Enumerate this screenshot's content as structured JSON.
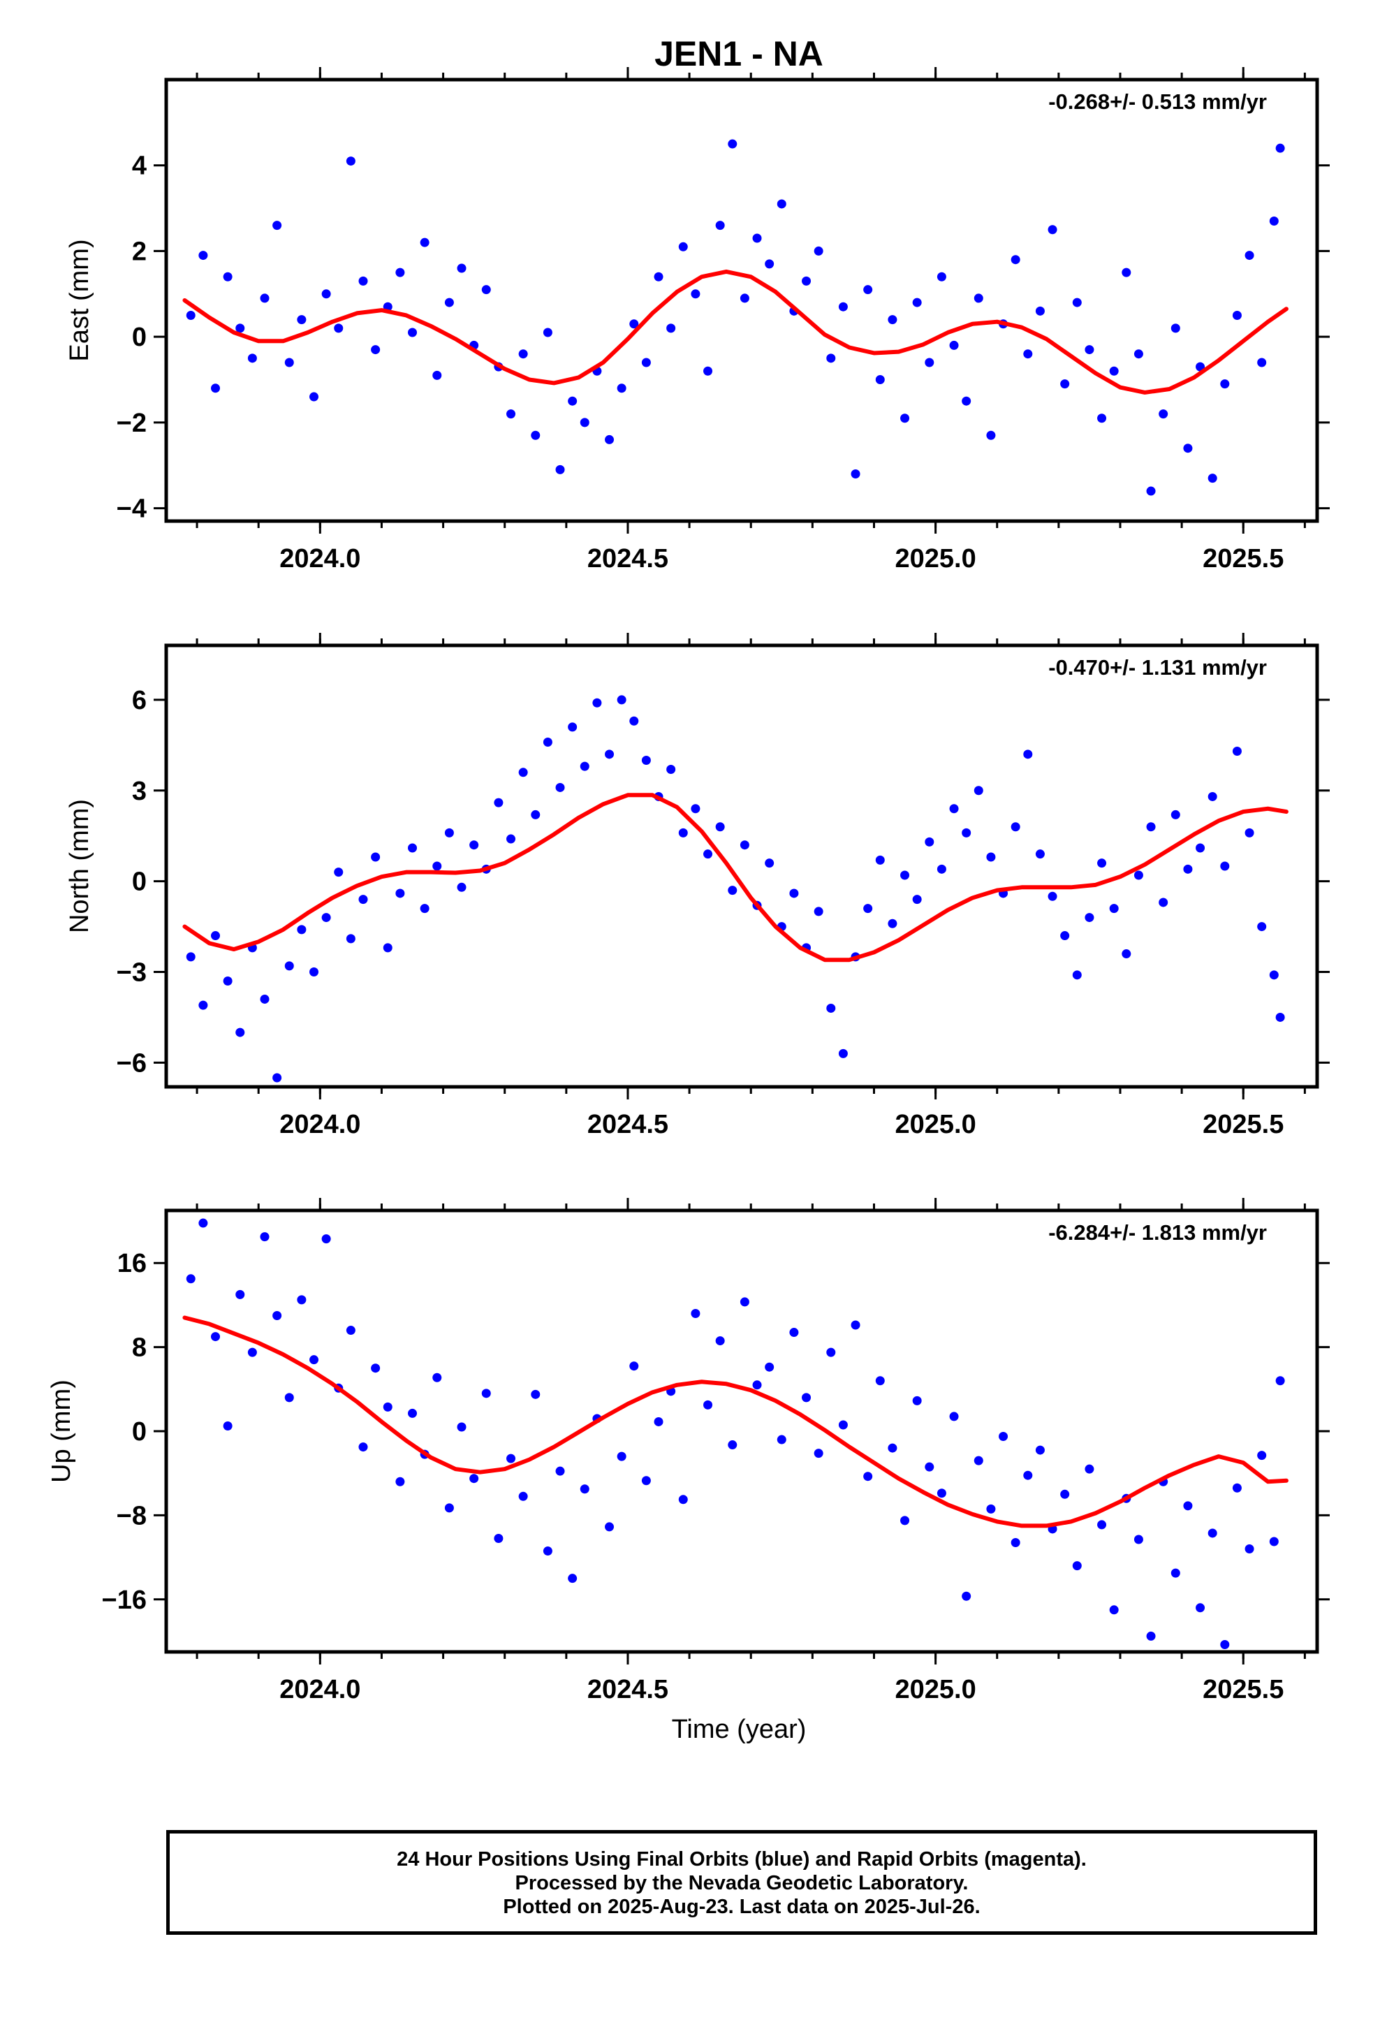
{
  "chart_data": [
    {
      "type": "scatter",
      "title": "JEN1 - NA",
      "ylabel": "East (mm)",
      "xlabel": "",
      "rate_label": "-0.268+/- 0.513 mm/yr",
      "xlim": [
        2023.75,
        2025.62
      ],
      "ylim": [
        -4.3,
        6.0
      ],
      "yticks": [
        -4,
        -2,
        0,
        2,
        4
      ],
      "yticklabels": [
        "−4",
        "−2",
        "0",
        "2",
        "4"
      ],
      "xticks": [
        2024.0,
        2024.5,
        2025.0,
        2025.5
      ],
      "xticklabels": [
        "2024.0",
        "2024.5",
        "2025.0",
        "2025.5"
      ],
      "grid": false,
      "series": [
        {
          "color": "#0000ff",
          "kind": "points",
          "x": [
            2023.79,
            2023.81,
            2023.83,
            2023.85,
            2023.87,
            2023.89,
            2023.91,
            2023.93,
            2023.95,
            2023.97,
            2023.99,
            2024.01,
            2024.03,
            2024.05,
            2024.07,
            2024.09,
            2024.11,
            2024.13,
            2024.15,
            2024.17,
            2024.19,
            2024.21,
            2024.23,
            2024.25,
            2024.27,
            2024.29,
            2024.31,
            2024.33,
            2024.35,
            2024.37,
            2024.39,
            2024.41,
            2024.43,
            2024.45,
            2024.47,
            2024.49,
            2024.51,
            2024.53,
            2024.55,
            2024.57,
            2024.59,
            2024.61,
            2024.63,
            2024.65,
            2024.67,
            2024.69,
            2024.71,
            2024.73,
            2024.75,
            2024.77,
            2024.79,
            2024.81,
            2024.83,
            2024.85,
            2024.87,
            2024.89,
            2024.91,
            2024.93,
            2024.95,
            2024.97,
            2024.99,
            2025.01,
            2025.03,
            2025.05,
            2025.07,
            2025.09,
            2025.11,
            2025.13,
            2025.15,
            2025.17,
            2025.19,
            2025.21,
            2025.23,
            2025.25,
            2025.27,
            2025.29,
            2025.31,
            2025.33,
            2025.35,
            2025.37,
            2025.39,
            2025.41,
            2025.43,
            2025.45,
            2025.47,
            2025.49,
            2025.51,
            2025.53,
            2025.55,
            2025.56
          ],
          "y": [
            0.5,
            1.9,
            -1.2,
            1.4,
            0.2,
            -0.5,
            0.9,
            2.6,
            -0.6,
            0.4,
            -1.4,
            1.0,
            0.2,
            4.1,
            1.3,
            -0.3,
            0.7,
            1.5,
            0.1,
            2.2,
            -0.9,
            0.8,
            1.6,
            -0.2,
            1.1,
            -0.7,
            -1.8,
            -0.4,
            -2.3,
            0.1,
            -3.1,
            -1.5,
            -2.0,
            -0.8,
            -2.4,
            -1.2,
            0.3,
            -0.6,
            1.4,
            0.2,
            2.1,
            1.0,
            -0.8,
            2.6,
            4.5,
            0.9,
            2.3,
            1.7,
            3.1,
            0.6,
            1.3,
            2.0,
            -0.5,
            0.7,
            -3.2,
            1.1,
            -1.0,
            0.4,
            -1.9,
            0.8,
            -0.6,
            1.4,
            -0.2,
            -1.5,
            0.9,
            -2.3,
            0.3,
            1.8,
            -0.4,
            0.6,
            2.5,
            -1.1,
            0.8,
            -0.3,
            -1.9,
            -0.8,
            1.5,
            -0.4,
            -3.6,
            -1.8,
            0.2,
            -2.6,
            -0.7,
            -3.3,
            -1.1,
            0.5,
            1.9,
            -0.6,
            2.7,
            4.4
          ]
        },
        {
          "color": "#ff0000",
          "kind": "line",
          "x": [
            2023.78,
            2023.82,
            2023.86,
            2023.9,
            2023.94,
            2023.98,
            2024.02,
            2024.06,
            2024.1,
            2024.14,
            2024.18,
            2024.22,
            2024.26,
            2024.3,
            2024.34,
            2024.38,
            2024.42,
            2024.46,
            2024.5,
            2024.54,
            2024.58,
            2024.62,
            2024.66,
            2024.7,
            2024.74,
            2024.78,
            2024.82,
            2024.86,
            2024.9,
            2024.94,
            2024.98,
            2025.02,
            2025.06,
            2025.1,
            2025.14,
            2025.18,
            2025.22,
            2025.26,
            2025.3,
            2025.34,
            2025.38,
            2025.42,
            2025.46,
            2025.5,
            2025.54,
            2025.57
          ],
          "y": [
            0.85,
            0.45,
            0.1,
            -0.1,
            -0.1,
            0.1,
            0.35,
            0.55,
            0.62,
            0.5,
            0.25,
            -0.05,
            -0.4,
            -0.75,
            -1.0,
            -1.08,
            -0.95,
            -0.6,
            -0.05,
            0.55,
            1.05,
            1.4,
            1.52,
            1.4,
            1.05,
            0.55,
            0.05,
            -0.25,
            -0.38,
            -0.35,
            -0.18,
            0.1,
            0.3,
            0.35,
            0.22,
            -0.05,
            -0.45,
            -0.85,
            -1.18,
            -1.3,
            -1.22,
            -0.95,
            -0.55,
            -0.1,
            0.35,
            0.65
          ]
        }
      ]
    },
    {
      "type": "scatter",
      "title": "",
      "ylabel": "North (mm)",
      "xlabel": "",
      "rate_label": "-0.470+/- 1.131 mm/yr",
      "xlim": [
        2023.75,
        2025.62
      ],
      "ylim": [
        -6.8,
        7.8
      ],
      "yticks": [
        -6,
        -3,
        0,
        3,
        6
      ],
      "yticklabels": [
        "−6",
        "−3",
        "0",
        "3",
        "6"
      ],
      "xticks": [
        2024.0,
        2024.5,
        2025.0,
        2025.5
      ],
      "xticklabels": [
        "2024.0",
        "2024.5",
        "2025.0",
        "2025.5"
      ],
      "grid": false,
      "series": [
        {
          "color": "#0000ff",
          "kind": "points",
          "x": [
            2023.79,
            2023.81,
            2023.83,
            2023.85,
            2023.87,
            2023.89,
            2023.91,
            2023.93,
            2023.95,
            2023.97,
            2023.99,
            2024.01,
            2024.03,
            2024.05,
            2024.07,
            2024.09,
            2024.11,
            2024.13,
            2024.15,
            2024.17,
            2024.19,
            2024.21,
            2024.23,
            2024.25,
            2024.27,
            2024.29,
            2024.31,
            2024.33,
            2024.35,
            2024.37,
            2024.39,
            2024.41,
            2024.43,
            2024.45,
            2024.47,
            2024.49,
            2024.51,
            2024.53,
            2024.55,
            2024.57,
            2024.59,
            2024.61,
            2024.63,
            2024.65,
            2024.67,
            2024.69,
            2024.71,
            2024.73,
            2024.75,
            2024.77,
            2024.79,
            2024.81,
            2024.83,
            2024.85,
            2024.87,
            2024.89,
            2024.91,
            2024.93,
            2024.95,
            2024.97,
            2024.99,
            2025.01,
            2025.03,
            2025.05,
            2025.07,
            2025.09,
            2025.11,
            2025.13,
            2025.15,
            2025.17,
            2025.19,
            2025.21,
            2025.23,
            2025.25,
            2025.27,
            2025.29,
            2025.31,
            2025.33,
            2025.35,
            2025.37,
            2025.39,
            2025.41,
            2025.43,
            2025.45,
            2025.47,
            2025.49,
            2025.51,
            2025.53,
            2025.55,
            2025.56
          ],
          "y": [
            -2.5,
            -4.1,
            -1.8,
            -3.3,
            -5.0,
            -2.2,
            -3.9,
            -6.5,
            -2.8,
            -1.6,
            -3.0,
            -1.2,
            0.3,
            -1.9,
            -0.6,
            0.8,
            -2.2,
            -0.4,
            1.1,
            -0.9,
            0.5,
            1.6,
            -0.2,
            1.2,
            0.4,
            2.6,
            1.4,
            3.6,
            2.2,
            4.6,
            3.1,
            5.1,
            3.8,
            5.9,
            4.2,
            6.0,
            5.3,
            4.0,
            2.8,
            3.7,
            1.6,
            2.4,
            0.9,
            1.8,
            -0.3,
            1.2,
            -0.8,
            0.6,
            -1.5,
            -0.4,
            -2.2,
            -1.0,
            -4.2,
            -5.7,
            -2.5,
            -0.9,
            0.7,
            -1.4,
            0.2,
            -0.6,
            1.3,
            0.4,
            2.4,
            1.6,
            3.0,
            0.8,
            -0.4,
            1.8,
            4.2,
            0.9,
            -0.5,
            -1.8,
            -3.1,
            -1.2,
            0.6,
            -0.9,
            -2.4,
            0.2,
            1.8,
            -0.7,
            2.2,
            0.4,
            1.1,
            2.8,
            0.5,
            4.3,
            1.6,
            -1.5,
            -3.1,
            -4.5
          ]
        },
        {
          "color": "#ff0000",
          "kind": "line",
          "x": [
            2023.78,
            2023.82,
            2023.86,
            2023.9,
            2023.94,
            2023.98,
            2024.02,
            2024.06,
            2024.1,
            2024.14,
            2024.18,
            2024.22,
            2024.26,
            2024.3,
            2024.34,
            2024.38,
            2024.42,
            2024.46,
            2024.5,
            2024.54,
            2024.58,
            2024.62,
            2024.66,
            2024.7,
            2024.74,
            2024.78,
            2024.82,
            2024.86,
            2024.9,
            2024.94,
            2024.98,
            2025.02,
            2025.06,
            2025.1,
            2025.14,
            2025.18,
            2025.22,
            2025.26,
            2025.3,
            2025.34,
            2025.38,
            2025.42,
            2025.46,
            2025.5,
            2025.54,
            2025.57
          ],
          "y": [
            -1.5,
            -2.05,
            -2.25,
            -2.0,
            -1.6,
            -1.05,
            -0.55,
            -0.15,
            0.15,
            0.3,
            0.3,
            0.28,
            0.35,
            0.6,
            1.05,
            1.55,
            2.1,
            2.55,
            2.85,
            2.85,
            2.45,
            1.65,
            0.6,
            -0.55,
            -1.5,
            -2.2,
            -2.6,
            -2.6,
            -2.35,
            -1.95,
            -1.45,
            -0.95,
            -0.55,
            -0.3,
            -0.2,
            -0.2,
            -0.2,
            -0.12,
            0.15,
            0.55,
            1.05,
            1.55,
            2.0,
            2.3,
            2.4,
            2.3
          ]
        }
      ]
    },
    {
      "type": "scatter",
      "title": "",
      "ylabel": "Up (mm)",
      "xlabel": "Time (year)",
      "rate_label": "-6.284+/- 1.813 mm/yr",
      "xlim": [
        2023.75,
        2025.62
      ],
      "ylim": [
        -21.0,
        21.0
      ],
      "yticks": [
        -16,
        -8,
        0,
        8,
        16
      ],
      "yticklabels": [
        "−16",
        "−8",
        "0",
        "8",
        "16"
      ],
      "xticks": [
        2024.0,
        2024.5,
        2025.0,
        2025.5
      ],
      "xticklabels": [
        "2024.0",
        "2024.5",
        "2025.0",
        "2025.5"
      ],
      "grid": false,
      "series": [
        {
          "color": "#0000ff",
          "kind": "points",
          "x": [
            2023.79,
            2023.81,
            2023.83,
            2023.85,
            2023.87,
            2023.89,
            2023.91,
            2023.93,
            2023.95,
            2023.97,
            2023.99,
            2024.01,
            2024.03,
            2024.05,
            2024.07,
            2024.09,
            2024.11,
            2024.13,
            2024.15,
            2024.17,
            2024.19,
            2024.21,
            2024.23,
            2024.25,
            2024.27,
            2024.29,
            2024.31,
            2024.33,
            2024.35,
            2024.37,
            2024.39,
            2024.41,
            2024.43,
            2024.45,
            2024.47,
            2024.49,
            2024.51,
            2024.53,
            2024.55,
            2024.57,
            2024.59,
            2024.61,
            2024.63,
            2024.65,
            2024.67,
            2024.69,
            2024.71,
            2024.73,
            2024.75,
            2024.77,
            2024.79,
            2024.81,
            2024.83,
            2024.85,
            2024.87,
            2024.89,
            2024.91,
            2024.93,
            2024.95,
            2024.97,
            2024.99,
            2025.01,
            2025.03,
            2025.05,
            2025.07,
            2025.09,
            2025.11,
            2025.13,
            2025.15,
            2025.17,
            2025.19,
            2025.21,
            2025.23,
            2025.25,
            2025.27,
            2025.29,
            2025.31,
            2025.33,
            2025.35,
            2025.37,
            2025.39,
            2025.41,
            2025.43,
            2025.45,
            2025.47,
            2025.49,
            2025.51,
            2025.53,
            2025.55,
            2025.56
          ],
          "y": [
            14.5,
            19.8,
            9.0,
            0.5,
            13.0,
            7.5,
            18.5,
            11.0,
            3.2,
            12.5,
            6.8,
            18.3,
            4.1,
            9.6,
            -1.5,
            6.0,
            2.3,
            -4.8,
            1.7,
            -2.2,
            5.1,
            -7.3,
            0.4,
            -4.5,
            3.6,
            -10.2,
            -2.6,
            -6.2,
            3.5,
            -11.4,
            -3.8,
            -14.0,
            -5.5,
            1.2,
            -9.1,
            -2.4,
            6.2,
            -4.7,
            0.9,
            3.8,
            -6.5,
            11.2,
            2.5,
            8.6,
            -1.3,
            12.3,
            4.4,
            6.1,
            -0.8,
            9.4,
            3.2,
            -2.1,
            7.5,
            0.6,
            10.1,
            -4.3,
            4.8,
            -1.6,
            -8.5,
            2.9,
            -3.4,
            -5.9,
            1.4,
            -15.7,
            -2.8,
            -7.4,
            -0.5,
            -10.6,
            -4.2,
            -1.8,
            -9.3,
            -6.0,
            -12.8,
            -3.6,
            -8.9,
            -17.0,
            -6.4,
            -10.3,
            -19.5,
            -4.8,
            -13.5,
            -7.1,
            -16.8,
            -9.7,
            -20.3,
            -5.4,
            -11.2,
            -2.3,
            -10.5,
            4.8
          ]
        },
        {
          "color": "#ff0000",
          "kind": "line",
          "x": [
            2023.78,
            2023.82,
            2023.86,
            2023.9,
            2023.94,
            2023.98,
            2024.02,
            2024.06,
            2024.1,
            2024.14,
            2024.18,
            2024.22,
            2024.26,
            2024.3,
            2024.34,
            2024.38,
            2024.42,
            2024.46,
            2024.5,
            2024.54,
            2024.58,
            2024.62,
            2024.66,
            2024.7,
            2024.74,
            2024.78,
            2024.82,
            2024.86,
            2024.9,
            2024.94,
            2024.98,
            2025.02,
            2025.06,
            2025.1,
            2025.14,
            2025.18,
            2025.22,
            2025.26,
            2025.3,
            2025.34,
            2025.38,
            2025.42,
            2025.46,
            2025.5,
            2025.54,
            2025.57
          ],
          "y": [
            10.8,
            10.2,
            9.3,
            8.4,
            7.3,
            6.0,
            4.5,
            2.8,
            0.9,
            -0.9,
            -2.5,
            -3.6,
            -3.9,
            -3.6,
            -2.7,
            -1.5,
            -0.1,
            1.3,
            2.6,
            3.7,
            4.4,
            4.7,
            4.5,
            3.9,
            2.9,
            1.6,
            0.1,
            -1.5,
            -3.0,
            -4.5,
            -5.8,
            -7.0,
            -7.9,
            -8.6,
            -9.0,
            -9.0,
            -8.6,
            -7.8,
            -6.7,
            -5.4,
            -4.2,
            -3.2,
            -2.4,
            -3.0,
            -4.8,
            -4.7
          ]
        }
      ]
    }
  ],
  "caption": {
    "line1": "24 Hour Positions Using Final Orbits (blue) and Rapid Orbits (magenta).",
    "line2": "Processed by the Nevada Geodetic Laboratory.",
    "line3": "Plotted on 2025-Aug-23. Last data on 2025-Jul-26."
  }
}
